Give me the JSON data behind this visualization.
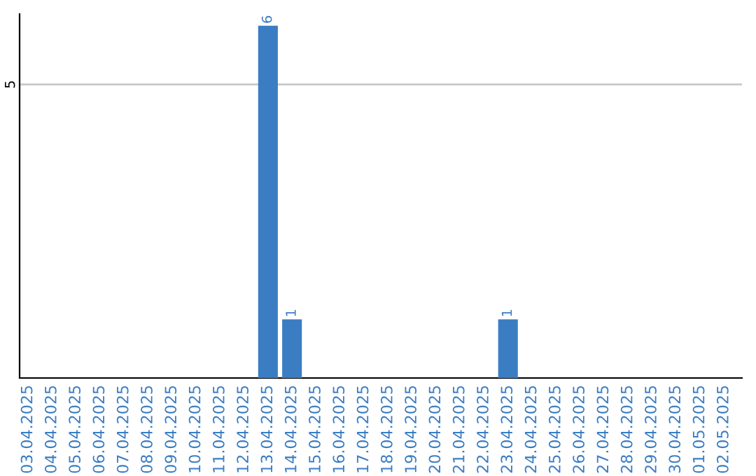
{
  "chart_data": {
    "type": "bar",
    "categories": [
      "03.04.2025",
      "04.04.2025",
      "05.04.2025",
      "06.04.2025",
      "07.04.2025",
      "08.04.2025",
      "09.04.2025",
      "10.04.2025",
      "11.04.2025",
      "12.04.2025",
      "13.04.2025",
      "14.04.2025",
      "15.04.2025",
      "16.04.2025",
      "17.04.2025",
      "18.04.2025",
      "19.04.2025",
      "20.04.2025",
      "21.04.2025",
      "22.04.2025",
      "23.04.2025",
      "24.04.2025",
      "25.04.2025",
      "26.04.2025",
      "27.04.2025",
      "28.04.2025",
      "29.04.2025",
      "30.04.2025",
      "01.05.2025",
      "02.05.2025"
    ],
    "values": [
      0,
      0,
      0,
      0,
      0,
      0,
      0,
      0,
      0,
      0,
      6,
      1,
      0,
      0,
      0,
      0,
      0,
      0,
      0,
      0,
      1,
      0,
      0,
      0,
      0,
      0,
      0,
      0,
      0,
      0
    ],
    "value_labels": [
      null,
      null,
      null,
      null,
      null,
      null,
      null,
      null,
      null,
      null,
      "6",
      "1",
      null,
      null,
      null,
      null,
      null,
      null,
      null,
      null,
      "1",
      null,
      null,
      null,
      null,
      null,
      null,
      null,
      null,
      null
    ],
    "color": "#3a7dc3",
    "ylim": [
      0,
      6.2
    ],
    "yticks": [
      5
    ],
    "grid": "y",
    "legend": false
  }
}
